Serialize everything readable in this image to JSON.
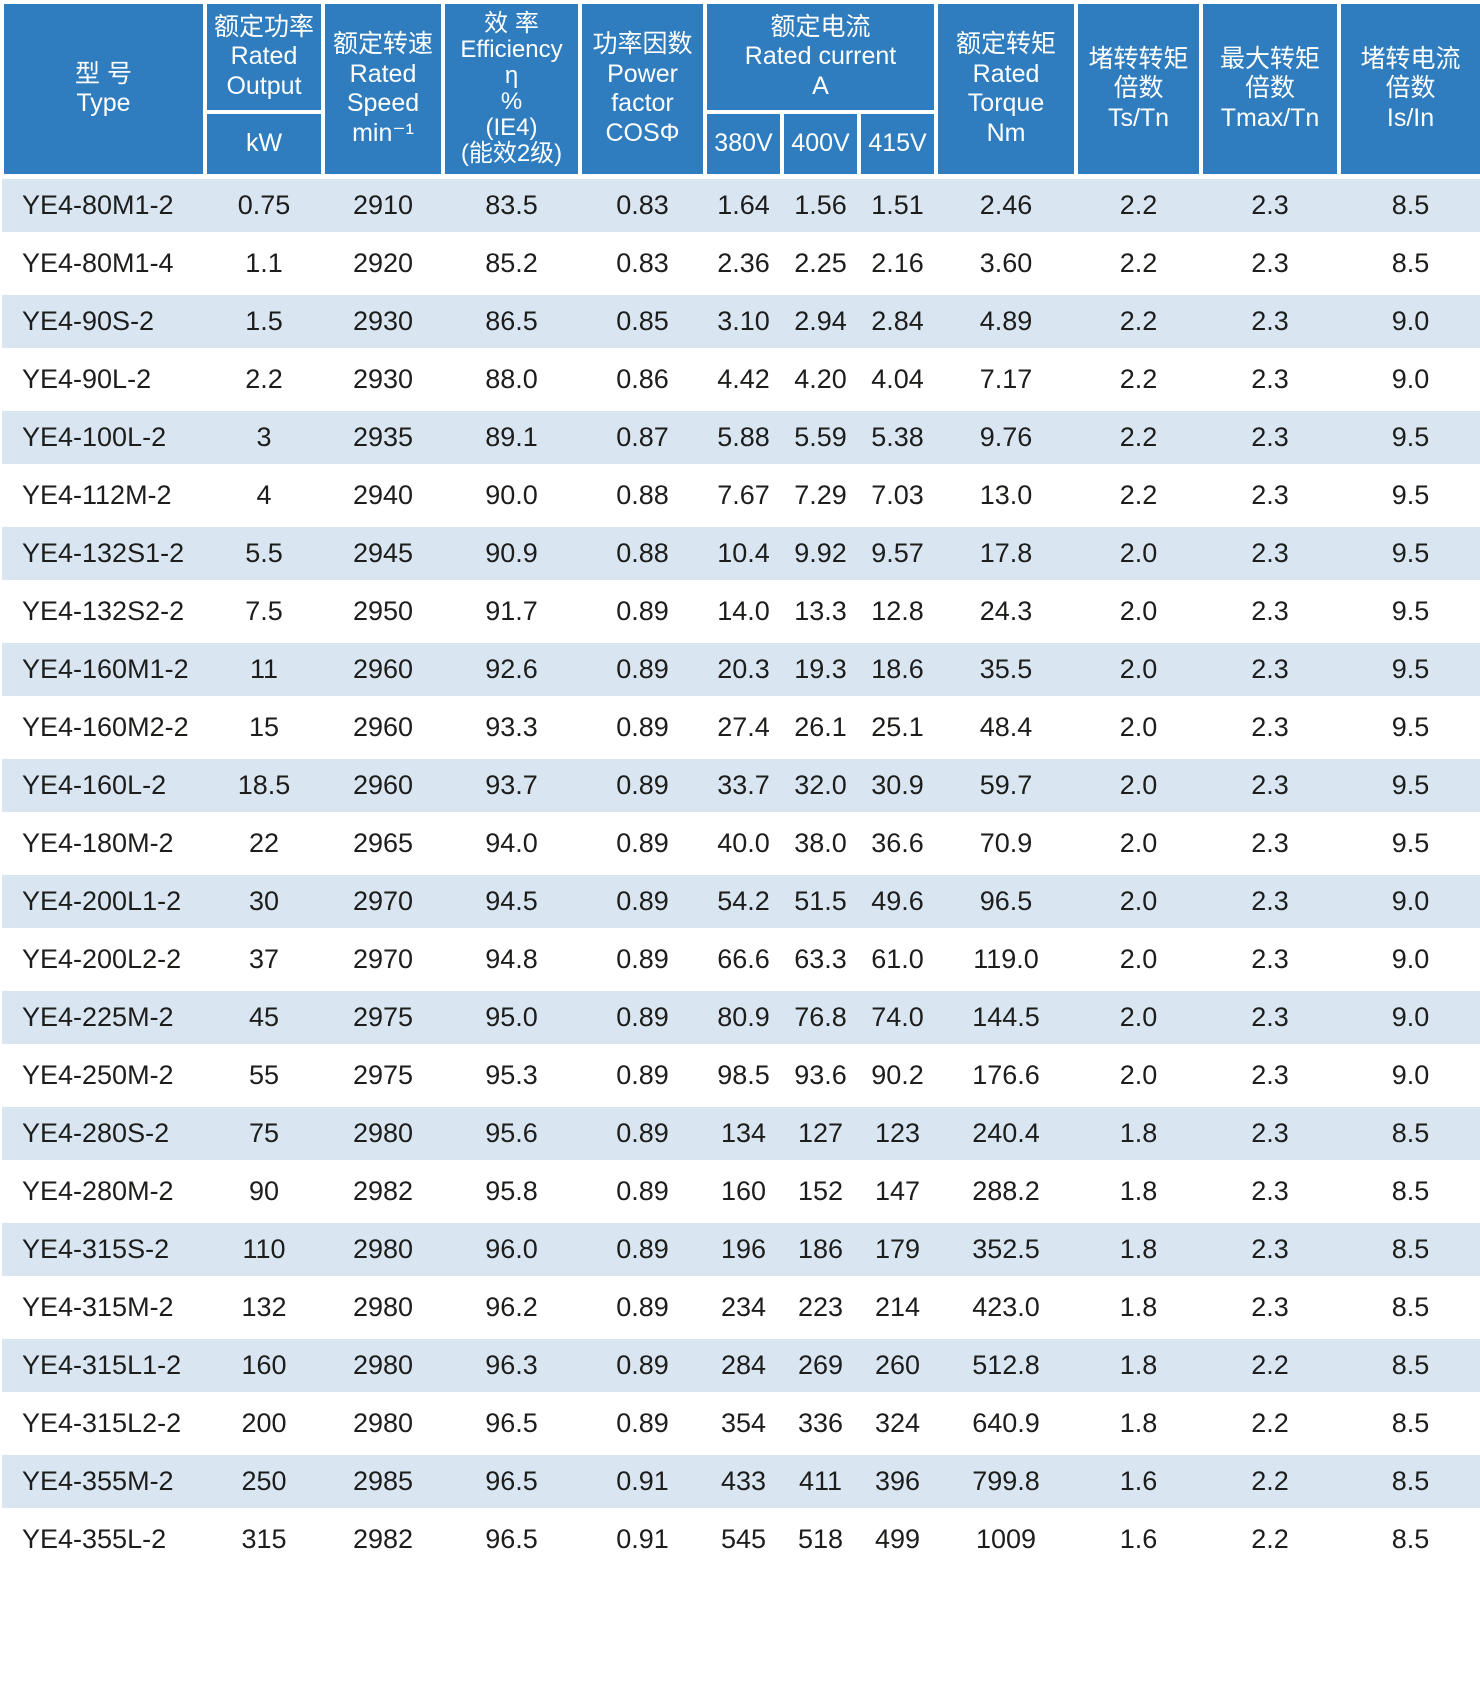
{
  "colors": {
    "header_blue": "#2f7dbf",
    "row_alt_blue": "#d9e6f2",
    "row_white": "#ffffff",
    "header_text": "#ffffff",
    "body_text": "#1d1d1b"
  },
  "table": {
    "header": {
      "type": "型 号\nType",
      "rated_output": "额定功率\nRated\nOutput",
      "rated_output_unit": "kW",
      "rated_speed": "额定转速\nRated\nSpeed\nmin⁻¹",
      "efficiency": "效 率\nEfficiency\nη\n%\n(IE4)\n(能效2级)",
      "power_factor": "功率因数\nPower\nfactor\nCOSΦ",
      "rated_current": "额定电流\nRated current\nA",
      "voltage_380": "380V",
      "voltage_400": "400V",
      "voltage_415": "415V",
      "rated_torque": "额定转矩\nRated\nTorque\nNm",
      "locked_rotor_torque": "堵转转矩\n倍数\nTs/Tn",
      "max_torque": "最大转矩\n倍数\nTmax/Tn",
      "locked_rotor_current": "堵转电流\n倍数\nIs/In"
    },
    "column_keys": [
      "type",
      "kw",
      "speed",
      "efficiency",
      "cos_phi",
      "i_380v",
      "i_400v",
      "i_415v",
      "torque",
      "ts_tn",
      "tmax_tn",
      "is_in"
    ],
    "rows": [
      [
        "YE4-80M1-2",
        "0.75",
        "2910",
        "83.5",
        "0.83",
        "1.64",
        "1.56",
        "1.51",
        "2.46",
        "2.2",
        "2.3",
        "8.5"
      ],
      [
        "YE4-80M1-4",
        "1.1",
        "2920",
        "85.2",
        "0.83",
        "2.36",
        "2.25",
        "2.16",
        "3.60",
        "2.2",
        "2.3",
        "8.5"
      ],
      [
        "YE4-90S-2",
        "1.5",
        "2930",
        "86.5",
        "0.85",
        "3.10",
        "2.94",
        "2.84",
        "4.89",
        "2.2",
        "2.3",
        "9.0"
      ],
      [
        "YE4-90L-2",
        "2.2",
        "2930",
        "88.0",
        "0.86",
        "4.42",
        "4.20",
        "4.04",
        "7.17",
        "2.2",
        "2.3",
        "9.0"
      ],
      [
        "YE4-100L-2",
        "3",
        "2935",
        "89.1",
        "0.87",
        "5.88",
        "5.59",
        "5.38",
        "9.76",
        "2.2",
        "2.3",
        "9.5"
      ],
      [
        "YE4-112M-2",
        "4",
        "2940",
        "90.0",
        "0.88",
        "7.67",
        "7.29",
        "7.03",
        "13.0",
        "2.2",
        "2.3",
        "9.5"
      ],
      [
        "YE4-132S1-2",
        "5.5",
        "2945",
        "90.9",
        "0.88",
        "10.4",
        "9.92",
        "9.57",
        "17.8",
        "2.0",
        "2.3",
        "9.5"
      ],
      [
        "YE4-132S2-2",
        "7.5",
        "2950",
        "91.7",
        "0.89",
        "14.0",
        "13.3",
        "12.8",
        "24.3",
        "2.0",
        "2.3",
        "9.5"
      ],
      [
        "YE4-160M1-2",
        "11",
        "2960",
        "92.6",
        "0.89",
        "20.3",
        "19.3",
        "18.6",
        "35.5",
        "2.0",
        "2.3",
        "9.5"
      ],
      [
        "YE4-160M2-2",
        "15",
        "2960",
        "93.3",
        "0.89",
        "27.4",
        "26.1",
        "25.1",
        "48.4",
        "2.0",
        "2.3",
        "9.5"
      ],
      [
        "YE4-160L-2",
        "18.5",
        "2960",
        "93.7",
        "0.89",
        "33.7",
        "32.0",
        "30.9",
        "59.7",
        "2.0",
        "2.3",
        "9.5"
      ],
      [
        "YE4-180M-2",
        "22",
        "2965",
        "94.0",
        "0.89",
        "40.0",
        "38.0",
        "36.6",
        "70.9",
        "2.0",
        "2.3",
        "9.5"
      ],
      [
        "YE4-200L1-2",
        "30",
        "2970",
        "94.5",
        "0.89",
        "54.2",
        "51.5",
        "49.6",
        "96.5",
        "2.0",
        "2.3",
        "9.0"
      ],
      [
        "YE4-200L2-2",
        "37",
        "2970",
        "94.8",
        "0.89",
        "66.6",
        "63.3",
        "61.0",
        "119.0",
        "2.0",
        "2.3",
        "9.0"
      ],
      [
        "YE4-225M-2",
        "45",
        "2975",
        "95.0",
        "0.89",
        "80.9",
        "76.8",
        "74.0",
        "144.5",
        "2.0",
        "2.3",
        "9.0"
      ],
      [
        "YE4-250M-2",
        "55",
        "2975",
        "95.3",
        "0.89",
        "98.5",
        "93.6",
        "90.2",
        "176.6",
        "2.0",
        "2.3",
        "9.0"
      ],
      [
        "YE4-280S-2",
        "75",
        "2980",
        "95.6",
        "0.89",
        "134",
        "127",
        "123",
        "240.4",
        "1.8",
        "2.3",
        "8.5"
      ],
      [
        "YE4-280M-2",
        "90",
        "2982",
        "95.8",
        "0.89",
        "160",
        "152",
        "147",
        "288.2",
        "1.8",
        "2.3",
        "8.5"
      ],
      [
        "YE4-315S-2",
        "110",
        "2980",
        "96.0",
        "0.89",
        "196",
        "186",
        "179",
        "352.5",
        "1.8",
        "2.3",
        "8.5"
      ],
      [
        "YE4-315M-2",
        "132",
        "2980",
        "96.2",
        "0.89",
        "234",
        "223",
        "214",
        "423.0",
        "1.8",
        "2.3",
        "8.5"
      ],
      [
        "YE4-315L1-2",
        "160",
        "2980",
        "96.3",
        "0.89",
        "284",
        "269",
        "260",
        "512.8",
        "1.8",
        "2.2",
        "8.5"
      ],
      [
        "YE4-315L2-2",
        "200",
        "2980",
        "96.5",
        "0.89",
        "354",
        "336",
        "324",
        "640.9",
        "1.8",
        "2.2",
        "8.5"
      ],
      [
        "YE4-355M-2",
        "250",
        "2985",
        "96.5",
        "0.91",
        "433",
        "411",
        "396",
        "799.8",
        "1.6",
        "2.2",
        "8.5"
      ],
      [
        "YE4-355L-2",
        "315",
        "2982",
        "96.5",
        "0.91",
        "545",
        "518",
        "499",
        "1009",
        "1.6",
        "2.2",
        "8.5"
      ]
    ]
  }
}
